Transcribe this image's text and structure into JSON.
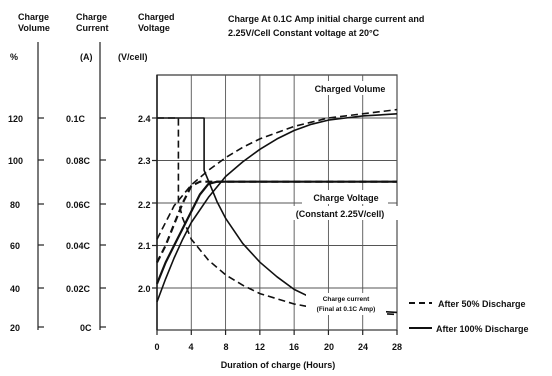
{
  "chart_data": {
    "type": "line",
    "title_lines": [
      "Charge At 0.1C Amp initial charge current and",
      "2.25V/Cell Constant voltage at 20°C"
    ],
    "xlabel": "Duration of charge (Hours)",
    "xlim": [
      0,
      28
    ],
    "x_ticks": [
      "0",
      "4",
      "8",
      "12",
      "16",
      "20",
      "24",
      "28"
    ],
    "axes": {
      "volume": {
        "header": [
          "Charge",
          "Volume"
        ],
        "unit": "%",
        "ticks": [
          "120",
          "100",
          "80",
          "60",
          "40",
          "20"
        ]
      },
      "current": {
        "header": [
          "Charge",
          "Current"
        ],
        "unit": "(A)",
        "ticks": [
          "0.1C",
          "0.08C",
          "0.06C",
          "0.04C",
          "0.02C",
          "0C"
        ]
      },
      "voltage": {
        "header": [
          "Charged",
          "Voltage"
        ],
        "unit": "(V/cell)",
        "ticks": [
          "2.4",
          "2.3",
          "2.2",
          "2.1",
          "2.0"
        ]
      }
    },
    "annotations": {
      "charged_volume": "Charged Volume",
      "charge_voltage": "Charge Voltage",
      "constant_voltage": "(Constant 2.25V/cell)",
      "charge_current": "Charge current",
      "charge_current_final": "(Final at 0.1C Amp)"
    },
    "legend": [
      {
        "label": "After 50% Discharge",
        "style": "dashed"
      },
      {
        "label": "After 100% Discharge",
        "style": "solid"
      }
    ],
    "series": [
      {
        "name": "Charged Volume",
        "condition": "After 50% Discharge",
        "axis": "volume",
        "points": [
          [
            0,
            62
          ],
          [
            2,
            78
          ],
          [
            4,
            88
          ],
          [
            6,
            95
          ],
          [
            8,
            101
          ],
          [
            10,
            106
          ],
          [
            12,
            110
          ],
          [
            14,
            113
          ],
          [
            16,
            116
          ],
          [
            18,
            118
          ],
          [
            20,
            120
          ],
          [
            22,
            121
          ],
          [
            24,
            122
          ],
          [
            26,
            123
          ],
          [
            28,
            124
          ]
        ]
      },
      {
        "name": "Charged Volume",
        "condition": "After 100% Discharge",
        "axis": "volume",
        "points": [
          [
            0,
            32
          ],
          [
            1,
            43
          ],
          [
            2,
            53
          ],
          [
            3,
            62
          ],
          [
            4,
            70
          ],
          [
            6,
            82
          ],
          [
            8,
            92
          ],
          [
            10,
            99
          ],
          [
            12,
            105
          ],
          [
            14,
            110
          ],
          [
            16,
            114
          ],
          [
            18,
            117
          ],
          [
            20,
            119
          ],
          [
            22,
            120
          ],
          [
            24,
            121
          ],
          [
            26,
            121.5
          ],
          [
            28,
            122
          ]
        ]
      },
      {
        "name": "Charge Voltage",
        "condition": "After 50% Discharge",
        "axis": "voltage",
        "points": [
          [
            0,
            2.06
          ],
          [
            1,
            2.1
          ],
          [
            2,
            2.15
          ],
          [
            3,
            2.2
          ],
          [
            4,
            2.24
          ],
          [
            5,
            2.25
          ],
          [
            28,
            2.25
          ]
        ]
      },
      {
        "name": "Charge Voltage",
        "condition": "After 100% Discharge",
        "axis": "voltage",
        "points": [
          [
            0,
            2.01
          ],
          [
            1,
            2.06
          ],
          [
            2,
            2.1
          ],
          [
            3,
            2.14
          ],
          [
            4,
            2.18
          ],
          [
            5,
            2.22
          ],
          [
            6,
            2.245
          ],
          [
            7,
            2.25
          ],
          [
            28,
            2.25
          ]
        ]
      },
      {
        "name": "Charge current",
        "condition": "After 50% Discharge",
        "axis": "current",
        "points": [
          [
            0,
            0.1
          ],
          [
            2.5,
            0.1
          ],
          [
            2.5,
            0.06
          ],
          [
            3,
            0.052
          ],
          [
            4,
            0.042
          ],
          [
            6,
            0.032
          ],
          [
            8,
            0.025
          ],
          [
            10,
            0.02
          ],
          [
            12,
            0.016
          ],
          [
            16,
            0.011
          ],
          [
            20,
            0.008
          ],
          [
            24,
            0.007
          ],
          [
            28,
            0.006
          ]
        ]
      },
      {
        "name": "Charge current",
        "condition": "After 100% Discharge",
        "axis": "current",
        "points": [
          [
            0,
            0.1
          ],
          [
            5.5,
            0.1
          ],
          [
            5.5,
            0.075
          ],
          [
            6,
            0.07
          ],
          [
            7,
            0.06
          ],
          [
            8,
            0.052
          ],
          [
            10,
            0.04
          ],
          [
            12,
            0.031
          ],
          [
            14,
            0.024
          ],
          [
            16,
            0.018
          ],
          [
            18,
            0.014
          ],
          [
            20,
            0.011
          ],
          [
            24,
            0.008
          ],
          [
            28,
            0.007
          ]
        ]
      }
    ],
    "grid": true
  }
}
